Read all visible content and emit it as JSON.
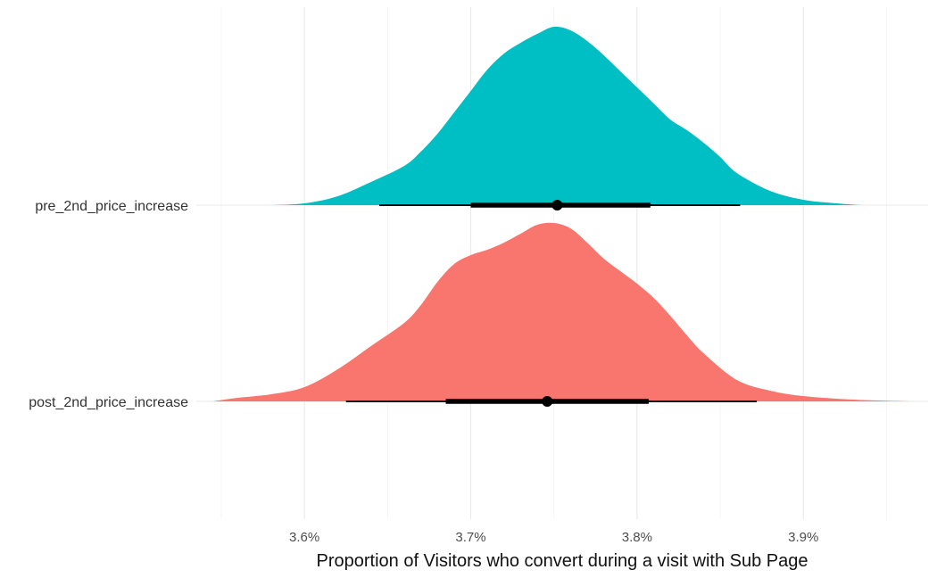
{
  "chart_data": {
    "type": "density-halfeye",
    "title": "",
    "xlabel": "Proportion of Visitors who convert during a visit with Sub Page",
    "ylabel": "",
    "xlim": [
      0.03535,
      0.03975
    ],
    "x_ticks": [
      {
        "value": 0.036,
        "label": "3.6%"
      },
      {
        "value": 0.037,
        "label": "3.7%"
      },
      {
        "value": 0.038,
        "label": "3.8%"
      },
      {
        "value": 0.039,
        "label": "3.9%"
      }
    ],
    "x_minor_ticks": [
      0.0355,
      0.0365,
      0.0375,
      0.0385,
      0.0395
    ],
    "grid": true,
    "legend": "none",
    "series": [
      {
        "category": "pre_2nd_price_increase",
        "color": "#00BFC4",
        "point": 0.03752,
        "interval_66": [
          0.037,
          0.03808
        ],
        "interval_95": [
          0.03645,
          0.03862
        ],
        "density": [
          [
            0.0358,
            0.0
          ],
          [
            0.036,
            0.01
          ],
          [
            0.0362,
            0.05
          ],
          [
            0.0364,
            0.13
          ],
          [
            0.0366,
            0.22
          ],
          [
            0.0367,
            0.3
          ],
          [
            0.0368,
            0.4
          ],
          [
            0.0369,
            0.52
          ],
          [
            0.037,
            0.64
          ],
          [
            0.0371,
            0.76
          ],
          [
            0.0372,
            0.85
          ],
          [
            0.0373,
            0.91
          ],
          [
            0.0374,
            0.96
          ],
          [
            0.0375,
            1.0
          ],
          [
            0.0376,
            0.98
          ],
          [
            0.0377,
            0.92
          ],
          [
            0.0378,
            0.84
          ],
          [
            0.0379,
            0.75
          ],
          [
            0.038,
            0.66
          ],
          [
            0.0381,
            0.57
          ],
          [
            0.0382,
            0.48
          ],
          [
            0.0383,
            0.42
          ],
          [
            0.0384,
            0.35
          ],
          [
            0.0385,
            0.27
          ],
          [
            0.0386,
            0.18
          ],
          [
            0.0388,
            0.08
          ],
          [
            0.039,
            0.03
          ],
          [
            0.0392,
            0.01
          ],
          [
            0.03935,
            0.0
          ]
        ]
      },
      {
        "category": "post_2nd_price_increase",
        "color": "#F8766D",
        "point": 0.03746,
        "interval_66": [
          0.03685,
          0.03807
        ],
        "interval_95": [
          0.03625,
          0.03872
        ],
        "density": [
          [
            0.03545,
            0.0
          ],
          [
            0.0356,
            0.02
          ],
          [
            0.0358,
            0.04
          ],
          [
            0.036,
            0.08
          ],
          [
            0.0362,
            0.18
          ],
          [
            0.0364,
            0.31
          ],
          [
            0.0366,
            0.44
          ],
          [
            0.0367,
            0.54
          ],
          [
            0.0368,
            0.67
          ],
          [
            0.0369,
            0.77
          ],
          [
            0.037,
            0.82
          ],
          [
            0.0371,
            0.85
          ],
          [
            0.0372,
            0.89
          ],
          [
            0.0373,
            0.94
          ],
          [
            0.0374,
            0.99
          ],
          [
            0.0375,
            1.0
          ],
          [
            0.0376,
            0.97
          ],
          [
            0.0377,
            0.89
          ],
          [
            0.0378,
            0.8
          ],
          [
            0.0379,
            0.73
          ],
          [
            0.038,
            0.66
          ],
          [
            0.0381,
            0.58
          ],
          [
            0.0382,
            0.48
          ],
          [
            0.0383,
            0.37
          ],
          [
            0.0384,
            0.27
          ],
          [
            0.0386,
            0.12
          ],
          [
            0.0388,
            0.06
          ],
          [
            0.039,
            0.03
          ],
          [
            0.0393,
            0.01
          ],
          [
            0.03965,
            0.0
          ]
        ]
      }
    ]
  }
}
